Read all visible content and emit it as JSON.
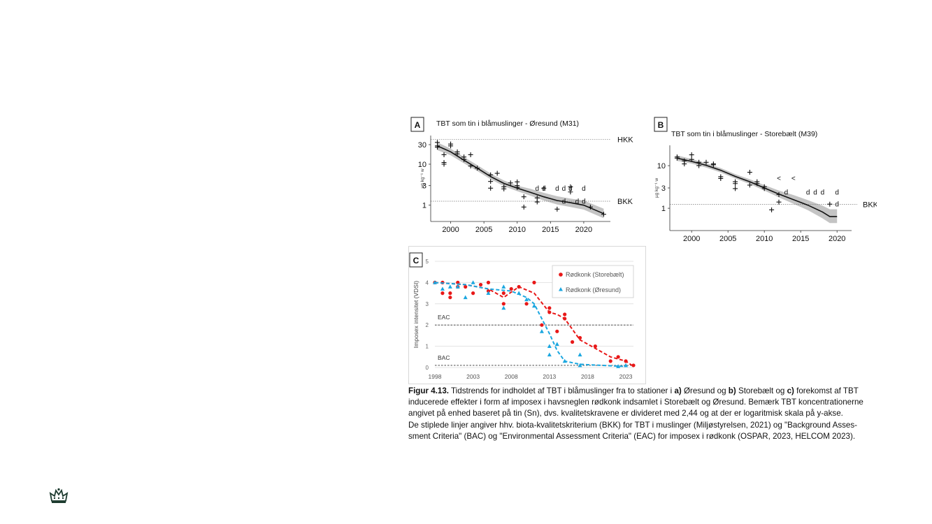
{
  "chart_data": [
    {
      "type": "scatter",
      "panel_letter": "A",
      "title": "TBT som tin i blåmuslinger - Øresund (M31)",
      "ylabel": "µg kg⁻¹ w",
      "y_scale": "log",
      "xlim": [
        1997,
        2024
      ],
      "ylim": [
        0.4,
        50
      ],
      "x_ticks": [
        2000,
        2005,
        2010,
        2015,
        2020
      ],
      "y_ticks": [
        1,
        3,
        10,
        30
      ],
      "reference_lines": [
        {
          "label": "HKK",
          "value": 40
        },
        {
          "label": "BKK",
          "value": 1.25
        }
      ],
      "points_plus": [
        [
          1998,
          34
        ],
        [
          1998,
          28
        ],
        [
          1998,
          26
        ],
        [
          1999,
          17
        ],
        [
          1999,
          11
        ],
        [
          1999,
          10
        ],
        [
          2000,
          31
        ],
        [
          2000,
          28
        ],
        [
          2001,
          20
        ],
        [
          2001,
          18
        ],
        [
          2002,
          15
        ],
        [
          2002,
          13
        ],
        [
          2003,
          17
        ],
        [
          2003,
          9
        ],
        [
          2004,
          8
        ],
        [
          2006,
          5.5
        ],
        [
          2006,
          3.8
        ],
        [
          2006,
          2.6
        ],
        [
          2007,
          6
        ],
        [
          2008,
          2.8
        ],
        [
          2008,
          2.5
        ],
        [
          2009,
          3.5
        ],
        [
          2010,
          3.7
        ],
        [
          2010,
          3
        ],
        [
          2010,
          2.7
        ],
        [
          2011,
          1.6
        ],
        [
          2011,
          0.9
        ],
        [
          2013,
          1.5
        ],
        [
          2013,
          1.2
        ],
        [
          2014,
          2.6
        ],
        [
          2016,
          0.8
        ],
        [
          2018,
          2.8
        ],
        [
          2018,
          2.1
        ],
        [
          2021,
          0.9
        ],
        [
          2023,
          0.6
        ]
      ],
      "points_d": [
        [
          2013,
          2.6
        ],
        [
          2014,
          2.6
        ],
        [
          2016,
          2.6
        ],
        [
          2017,
          2.6
        ],
        [
          2018,
          2.6
        ],
        [
          2020,
          2.6
        ],
        [
          2017,
          1.25
        ],
        [
          2019,
          1.25
        ],
        [
          2020,
          1.25
        ]
      ],
      "trend": [
        [
          1998,
          28
        ],
        [
          2000,
          20
        ],
        [
          2002,
          12.5
        ],
        [
          2004,
          8
        ],
        [
          2006,
          5
        ],
        [
          2008,
          3.4
        ],
        [
          2010,
          2.6
        ],
        [
          2012,
          2.05
        ],
        [
          2014,
          1.6
        ],
        [
          2016,
          1.3
        ],
        [
          2018,
          1.15
        ],
        [
          2020,
          1.0
        ],
        [
          2023,
          0.62
        ]
      ],
      "band_low": [
        [
          1998,
          22
        ],
        [
          2000,
          16.5
        ],
        [
          2002,
          10.5
        ],
        [
          2004,
          6.8
        ],
        [
          2006,
          4.3
        ],
        [
          2008,
          2.9
        ],
        [
          2010,
          2.2
        ],
        [
          2012,
          1.7
        ],
        [
          2014,
          1.3
        ],
        [
          2016,
          1.04
        ],
        [
          2018,
          0.9
        ],
        [
          2020,
          0.78
        ],
        [
          2023,
          0.48
        ]
      ],
      "band_high": [
        [
          1998,
          34
        ],
        [
          2000,
          24
        ],
        [
          2002,
          15
        ],
        [
          2004,
          9.5
        ],
        [
          2006,
          5.9
        ],
        [
          2008,
          4
        ],
        [
          2010,
          3
        ],
        [
          2012,
          2.5
        ],
        [
          2014,
          2
        ],
        [
          2016,
          1.65
        ],
        [
          2018,
          1.45
        ],
        [
          2020,
          1.3
        ],
        [
          2023,
          0.82
        ]
      ]
    },
    {
      "type": "scatter",
      "panel_letter": "B",
      "title": "TBT som tin i blåmuslinger - Storebælt (M39)",
      "ylabel": "µg kg⁻¹ w",
      "y_scale": "log",
      "xlim": [
        1997,
        2022
      ],
      "ylim": [
        0.3,
        30
      ],
      "x_ticks": [
        2000,
        2005,
        2010,
        2015,
        2020
      ],
      "y_ticks": [
        1,
        3,
        10
      ],
      "reference_lines": [
        {
          "label": "BKK",
          "value": 1.23
        }
      ],
      "points_plus": [
        [
          1998,
          16
        ],
        [
          1998,
          15
        ],
        [
          1999,
          13
        ],
        [
          1999,
          11
        ],
        [
          2000,
          18
        ],
        [
          2000,
          14
        ],
        [
          2001,
          12
        ],
        [
          2001,
          10
        ],
        [
          2002,
          12
        ],
        [
          2003,
          11
        ],
        [
          2003,
          10.5
        ],
        [
          2004,
          5.5
        ],
        [
          2004,
          5
        ],
        [
          2006,
          4.2
        ],
        [
          2006,
          3.8
        ],
        [
          2006,
          2.9
        ],
        [
          2008,
          7
        ],
        [
          2008,
          3.5
        ],
        [
          2009,
          4.2
        ],
        [
          2009,
          3.8
        ],
        [
          2010,
          3.2
        ],
        [
          2010,
          2.9
        ],
        [
          2011,
          0.92
        ],
        [
          2012,
          2.1
        ],
        [
          2012,
          1.4
        ],
        [
          2019,
          1.25
        ]
      ],
      "points_d": [
        [
          2013,
          2.4
        ],
        [
          2016,
          2.4
        ],
        [
          2017,
          2.4
        ],
        [
          2018,
          2.4
        ],
        [
          2020,
          2.4
        ],
        [
          2020,
          1.25
        ]
      ],
      "points_lt": [
        [
          2012,
          5.1
        ],
        [
          2014,
          5.1
        ]
      ],
      "trend": [
        [
          1998,
          15
        ],
        [
          2000,
          12.6
        ],
        [
          2002,
          10.2
        ],
        [
          2004,
          7.8
        ],
        [
          2006,
          5.6
        ],
        [
          2008,
          4.2
        ],
        [
          2010,
          3
        ],
        [
          2012,
          2.15
        ],
        [
          2014,
          1.6
        ],
        [
          2016,
          1.18
        ],
        [
          2018,
          0.82
        ],
        [
          2019,
          0.64
        ],
        [
          2020,
          0.64
        ]
      ],
      "band_low": [
        [
          1998,
          13
        ],
        [
          2000,
          11.2
        ],
        [
          2002,
          9
        ],
        [
          2004,
          6.9
        ],
        [
          2006,
          5
        ],
        [
          2008,
          3.7
        ],
        [
          2010,
          2.6
        ],
        [
          2012,
          1.8
        ],
        [
          2014,
          1.28
        ],
        [
          2016,
          0.9
        ],
        [
          2018,
          0.58
        ],
        [
          2019,
          0.45
        ],
        [
          2020,
          0.45
        ]
      ],
      "band_high": [
        [
          1998,
          17.5
        ],
        [
          2000,
          14.3
        ],
        [
          2002,
          11.5
        ],
        [
          2004,
          8.8
        ],
        [
          2006,
          6.3
        ],
        [
          2008,
          4.8
        ],
        [
          2010,
          3.5
        ],
        [
          2012,
          2.6
        ],
        [
          2014,
          2.05
        ],
        [
          2016,
          1.55
        ],
        [
          2018,
          1.15
        ],
        [
          2019,
          0.95
        ],
        [
          2020,
          0.95
        ]
      ]
    },
    {
      "type": "scatter",
      "panel_letter": "C",
      "ylabel": "Imposex intensitet (VDSI)",
      "xlim": [
        1998,
        2024
      ],
      "ylim": [
        0,
        5
      ],
      "x_ticks": [
        1998,
        2003,
        2008,
        2013,
        2018,
        2023
      ],
      "y_ticks": [
        0,
        1,
        2,
        3,
        4,
        5
      ],
      "reference_lines": [
        {
          "label": "EAC",
          "value": 2
        },
        {
          "label": "BAC",
          "value": 0.1
        }
      ],
      "series": [
        {
          "name": "Rødkonk (Storebælt)",
          "color": "#e81818",
          "points": [
            [
              1998,
              4
            ],
            [
              1999,
              3.5
            ],
            [
              1999,
              4
            ],
            [
              2000,
              3.3
            ],
            [
              2000,
              3.5
            ],
            [
              2001,
              4
            ],
            [
              2001,
              3.8
            ],
            [
              2002,
              3.8
            ],
            [
              2003,
              3.5
            ],
            [
              2004,
              3.9
            ],
            [
              2005,
              4
            ],
            [
              2005,
              3.6
            ],
            [
              2007,
              3
            ],
            [
              2007,
              3.5
            ],
            [
              2008,
              3.7
            ],
            [
              2009,
              3.8
            ],
            [
              2010,
              3
            ],
            [
              2011,
              4
            ],
            [
              2012,
              2
            ],
            [
              2013,
              2.8
            ],
            [
              2013,
              2.6
            ],
            [
              2014,
              1.7
            ],
            [
              2015,
              2.5
            ],
            [
              2015,
              2.3
            ],
            [
              2016,
              1.2
            ],
            [
              2017,
              1.4
            ],
            [
              2019,
              1
            ],
            [
              2021,
              0.3
            ],
            [
              2022,
              0.5
            ],
            [
              2023,
              0.3
            ],
            [
              2024,
              0.1
            ]
          ],
          "trend": [
            [
              1998,
              4
            ],
            [
              2002,
              3.9
            ],
            [
              2005,
              3.7
            ],
            [
              2007,
              3.3
            ],
            [
              2009,
              3.8
            ],
            [
              2011,
              3.5
            ],
            [
              2013,
              2.6
            ],
            [
              2014,
              2.5
            ],
            [
              2015,
              2.3
            ],
            [
              2017,
              1.3
            ],
            [
              2019,
              0.9
            ],
            [
              2021,
              0.5
            ],
            [
              2023,
              0.3
            ],
            [
              2024,
              0.05
            ]
          ]
        },
        {
          "name": "Rødkonk (Øresund)",
          "color": "#1ba7e0",
          "points": [
            [
              1998,
              4
            ],
            [
              1999,
              3.7
            ],
            [
              2000,
              3.8
            ],
            [
              2001,
              3.8
            ],
            [
              2002,
              3.3
            ],
            [
              2003,
              4
            ],
            [
              2005,
              3.5
            ],
            [
              2007,
              2.8
            ],
            [
              2007,
              3.8
            ],
            [
              2009,
              3.5
            ],
            [
              2010,
              3.2
            ],
            [
              2011,
              2.9
            ],
            [
              2012,
              1.7
            ],
            [
              2013,
              1
            ],
            [
              2013,
              0.6
            ],
            [
              2014,
              1.1
            ],
            [
              2015,
              0.3
            ],
            [
              2017,
              0.1
            ],
            [
              2017,
              0.6
            ],
            [
              2022,
              0.05
            ],
            [
              2023,
              0.1
            ]
          ],
          "trend": [
            [
              1998,
              4
            ],
            [
              2002,
              3.9
            ],
            [
              2005,
              3.7
            ],
            [
              2008,
              3.6
            ],
            [
              2010,
              3.3
            ],
            [
              2011,
              3
            ],
            [
              2012,
              2.3
            ],
            [
              2013,
              1.6
            ],
            [
              2014,
              0.8
            ],
            [
              2015,
              0.3
            ],
            [
              2017,
              0.15
            ],
            [
              2020,
              0.1
            ],
            [
              2023,
              0.05
            ]
          ]
        }
      ]
    }
  ],
  "caption": {
    "fig_label": "Figur 4.13.",
    "l1a": "Tidstrends for indholdet af TBT i blåmuslinger fra to stationer i ",
    "l1b": "a)",
    "l1c": " Øresund og ",
    "l1d": "b)",
    "l1e": " Storebælt og ",
    "l1f": "c)",
    "l1g": " forekomst af TBT",
    "l2": "inducerede effekter i form af imposex i havsneglen rødkonk indsamlet i Storebælt og Øresund. Bemærk TBT koncentrationerne",
    "l3": "angivet på enhed baseret på tin (Sn), dvs. kvalitetskravene er divideret med 2,44 og at der er logaritmisk skala på y-akse.",
    "l4": "De stiplede linjer angiver hhv. biota-kvalitetskriterium (BKK) for TBT i muslinger (Miljøstyrelsen, 2021) og \"Background Asses-",
    "l5": "sment Criteria\" (BAC) og \"Environmental Assessment Criteria\" (EAC) for imposex i rødkonk (OSPAR, 2023, HELCOM 2023)."
  },
  "logo": {
    "icon": "crown-icon"
  }
}
